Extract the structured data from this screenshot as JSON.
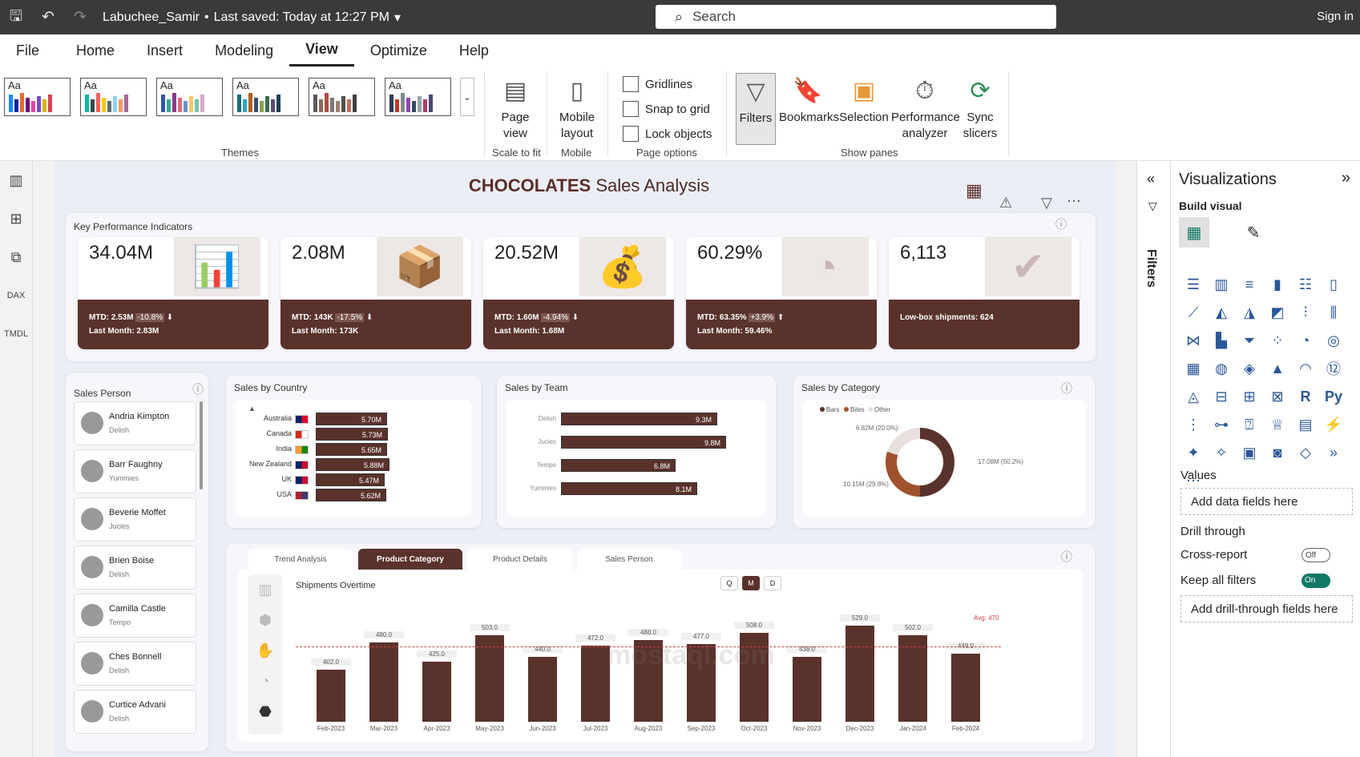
{
  "titlebar": {
    "doc_title": "Labuchee_Samir",
    "saved": "Last saved: Today at 12:27 PM",
    "search_placeholder": "Search",
    "sign_in": "Sign in"
  },
  "menu": [
    "File",
    "Home",
    "Insert",
    "Modeling",
    "View",
    "Optimize",
    "Help"
  ],
  "ribbon": {
    "themes_label": "Themes",
    "page_view": "Page view",
    "scale_label": "Scale to fit",
    "mobile_layout": "Mobile layout",
    "mobile_label": "Mobile",
    "gridlines": "Gridlines",
    "snap": "Snap to grid",
    "lock": "Lock objects",
    "page_options": "Page options",
    "filters": "Filters",
    "bookmarks": "Bookmarks",
    "selection": "Selection",
    "performance": "Performance analyzer",
    "sync": "Sync slicers",
    "show_panes": "Show panes"
  },
  "report": {
    "title_brand": "CHOCOLATES",
    "title_rest": "Sales Analysis",
    "kpi_header": "Key Performance Indicators",
    "kpis": [
      {
        "value": "34.04M",
        "line1": "MTD: 2.53M",
        "chg": "-10.8%",
        "line2": "Last Month: 2.83M"
      },
      {
        "value": "2.08M",
        "line1": "MTD: 143K",
        "chg": "-17.5%",
        "line2": "Last Month: 173K"
      },
      {
        "value": "20.52M",
        "line1": "MTD: 1.60M",
        "chg": "-4.94%",
        "line2": "Last Month: 1.68M"
      },
      {
        "value": "60.29%",
        "line1": "MTD: 63.35%",
        "chg": "+3.9%",
        "line2": "Last Month: 59.46%"
      },
      {
        "value": "6,113",
        "line1": "Low-box shipments: 624",
        "chg": "",
        "line2": ""
      }
    ],
    "sales_person_header": "Sales Person",
    "persons": [
      {
        "name": "Andria Kimpton",
        "team": "Delish"
      },
      {
        "name": "Barr Faughny",
        "team": "Yummies"
      },
      {
        "name": "Beverie Moffet",
        "team": "Jucies"
      },
      {
        "name": "Brien Boise",
        "team": "Delish"
      },
      {
        "name": "Camilla Castle",
        "team": "Tempo"
      },
      {
        "name": "Ches Bonnell",
        "team": "Delish"
      },
      {
        "name": "Curtice Advani",
        "team": "Delish"
      }
    ],
    "country_header": "Sales by Country",
    "team_header": "Sales by Team",
    "category_header": "Sales by Category",
    "tabs": [
      "Trend Analysis",
      "Product Category",
      "Product Details",
      "Sales Person"
    ],
    "shipments_title": "Shipments Overtime",
    "period_buttons": [
      "Q",
      "M",
      "D"
    ],
    "avg_label": "Avg: 470",
    "watermark": "mostaql.com"
  },
  "chart_data": [
    {
      "type": "bar",
      "title": "Sales by Country",
      "categories": [
        "Australia",
        "Canada",
        "India",
        "New Zealand",
        "UK",
        "USA"
      ],
      "values": [
        5.7,
        5.73,
        5.65,
        5.88,
        5.47,
        5.62
      ],
      "labels": [
        "5.70M",
        "5.73M",
        "5.65M",
        "5.88M",
        "5.47M",
        "5.62M"
      ]
    },
    {
      "type": "bar",
      "title": "Sales by Team",
      "categories": [
        "Delish",
        "Jucies",
        "Tempo",
        "Yummies"
      ],
      "values": [
        9.3,
        9.8,
        6.8,
        8.1
      ],
      "labels": [
        "9.3M",
        "9.8M",
        "6.8M",
        "8.1M"
      ]
    },
    {
      "type": "pie",
      "title": "Sales by Category",
      "categories": [
        "Bars",
        "Bites",
        "Other"
      ],
      "values": [
        17.08,
        10.15,
        6.82
      ],
      "labels": [
        "17.08M (50.2%)",
        "10.15M (29.8%)",
        "6.82M (20.0%)"
      ],
      "colors": [
        "#5a322c",
        "#a0522d",
        "#e8e0de"
      ]
    },
    {
      "type": "bar",
      "title": "Shipments Overtime",
      "categories": [
        "Feb-2023",
        "Mar-2023",
        "Apr-2023",
        "May-2023",
        "Jun-2023",
        "Jul-2023",
        "Aug-2023",
        "Sep-2023",
        "Oct-2023",
        "Nov-2023",
        "Dec-2023",
        "Jan-2024",
        "Feb-2024"
      ],
      "values": [
        402,
        480,
        425,
        503,
        440,
        472,
        488,
        477,
        508,
        438,
        529,
        502,
        449
      ],
      "ylim": [
        0,
        600
      ],
      "avg": 470
    }
  ],
  "viz": {
    "title": "Visualizations",
    "build": "Build visual",
    "values": "Values",
    "add_fields": "Add data fields here",
    "drill": "Drill through",
    "cross": "Cross-report",
    "cross_state": "Off",
    "keep": "Keep all filters",
    "keep_state": "On",
    "add_drill": "Add drill-through fields here"
  },
  "filters_label": "Filters"
}
